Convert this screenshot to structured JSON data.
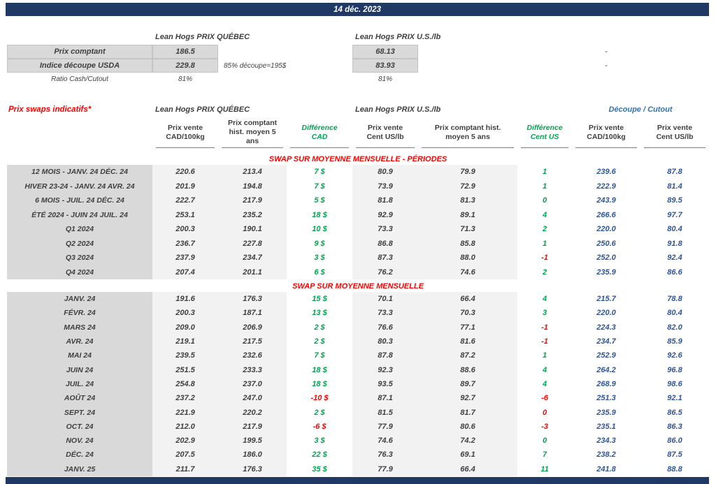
{
  "colors": {
    "navy": "#203864",
    "label_gray": "#D9D9D9",
    "shade": "#F2F2F2",
    "text": "#3F3F3F",
    "red": "#FF0000",
    "green": "#00A550",
    "blue_header": "#2E74B5",
    "blue_value": "#2F5597",
    "header_rule": "#808080"
  },
  "banner": {
    "date": "14 déc. 2023"
  },
  "top": {
    "qc_header": "Lean Hogs PRIX QUÉBEC",
    "us_header": "Lean Hogs PRIX U.S./lb",
    "rows": [
      {
        "label": "Prix comptant",
        "qc": "186.5",
        "note": "",
        "us": "68.13",
        "cutout": "-"
      },
      {
        "label": "Indice découpe USDA",
        "qc": "229.8",
        "note": "85% découpe=195$",
        "us": "83.93",
        "cutout": "-"
      },
      {
        "label": "Ratio Cash/Cutout",
        "qc": "81%",
        "note": "",
        "us": "81%",
        "cutout": ""
      }
    ]
  },
  "swaps": {
    "title": "Prix swaps indicatifs*",
    "group_headers": {
      "qc": "Lean Hogs PRIX QUÉBEC",
      "us": "Lean Hogs PRIX U.S./lb",
      "cutout": "Découpe / Cutout"
    },
    "col_headers": [
      "Prix vente\nCAD/100kg",
      "Prix comptant\nhist. moyen 5\nans",
      "Différence\nCAD",
      "Prix vente\nCent US/lb",
      "Prix comptant hist.\nmoyen 5 ans",
      "Différence\nCent US",
      "Prix vente\nCAD/100kg",
      "Prix vente\nCent US/lb"
    ],
    "sections": [
      {
        "header": "SWAP SUR MOYENNE MENSUELLE - PÉRIODES",
        "rows": [
          {
            "label": "12 MOIS -  JANV. 24 DÉC. 24",
            "vente_cad": "220.6",
            "hist_cad": "213.4",
            "diff_cad": "7 $",
            "diff_cad_color": "green",
            "vente_us": "80.9",
            "hist_us": "79.9",
            "diff_us": "1",
            "diff_us_color": "green",
            "cutout_cad": "239.6",
            "cutout_us": "87.8"
          },
          {
            "label": "HIVER 23-24 -  JANV. 24 AVR. 24",
            "vente_cad": "201.9",
            "hist_cad": "194.8",
            "diff_cad": "7 $",
            "diff_cad_color": "green",
            "vente_us": "73.9",
            "hist_us": "72.9",
            "diff_us": "1",
            "diff_us_color": "green",
            "cutout_cad": "222.9",
            "cutout_us": "81.4"
          },
          {
            "label": "6 MOIS -  JUIL. 24 DÉC. 24",
            "vente_cad": "222.7",
            "hist_cad": "217.9",
            "diff_cad": "5 $",
            "diff_cad_color": "green",
            "vente_us": "81.8",
            "hist_us": "81.3",
            "diff_us": "0",
            "diff_us_color": "green",
            "cutout_cad": "243.9",
            "cutout_us": "89.5"
          },
          {
            "label": "ÉTÉ 2024 - JUIN 24 JUIL. 24",
            "vente_cad": "253.1",
            "hist_cad": "235.2",
            "diff_cad": "18 $",
            "diff_cad_color": "green",
            "vente_us": "92.9",
            "hist_us": "89.1",
            "diff_us": "4",
            "diff_us_color": "green",
            "cutout_cad": "266.6",
            "cutout_us": "97.7"
          },
          {
            "label": "Q1 2024",
            "vente_cad": "200.3",
            "hist_cad": "190.1",
            "diff_cad": "10 $",
            "diff_cad_color": "green",
            "vente_us": "73.3",
            "hist_us": "71.3",
            "diff_us": "2",
            "diff_us_color": "green",
            "cutout_cad": "220.0",
            "cutout_us": "80.4"
          },
          {
            "label": "Q2 2024",
            "vente_cad": "236.7",
            "hist_cad": "227.8",
            "diff_cad": "9 $",
            "diff_cad_color": "green",
            "vente_us": "86.8",
            "hist_us": "85.8",
            "diff_us": "1",
            "diff_us_color": "green",
            "cutout_cad": "250.6",
            "cutout_us": "91.8"
          },
          {
            "label": "Q3 2024",
            "vente_cad": "237.9",
            "hist_cad": "234.7",
            "diff_cad": "3 $",
            "diff_cad_color": "green",
            "vente_us": "87.3",
            "hist_us": "88.0",
            "diff_us": "-1",
            "diff_us_color": "red",
            "cutout_cad": "252.0",
            "cutout_us": "92.4"
          },
          {
            "label": "Q4 2024",
            "vente_cad": "207.4",
            "hist_cad": "201.1",
            "diff_cad": "6 $",
            "diff_cad_color": "green",
            "vente_us": "76.2",
            "hist_us": "74.6",
            "diff_us": "2",
            "diff_us_color": "green",
            "cutout_cad": "235.9",
            "cutout_us": "86.6"
          }
        ]
      },
      {
        "header": "SWAP SUR MOYENNE MENSUELLE",
        "rows": [
          {
            "label": "JANV. 24",
            "vente_cad": "191.6",
            "hist_cad": "176.3",
            "diff_cad": "15 $",
            "diff_cad_color": "green",
            "vente_us": "70.1",
            "hist_us": "66.4",
            "diff_us": "4",
            "diff_us_color": "green",
            "cutout_cad": "215.7",
            "cutout_us": "78.8"
          },
          {
            "label": "FÉVR. 24",
            "vente_cad": "200.3",
            "hist_cad": "187.1",
            "diff_cad": "13 $",
            "diff_cad_color": "green",
            "vente_us": "73.3",
            "hist_us": "70.3",
            "diff_us": "3",
            "diff_us_color": "green",
            "cutout_cad": "220.0",
            "cutout_us": "80.4"
          },
          {
            "label": "MARS 24",
            "vente_cad": "209.0",
            "hist_cad": "206.9",
            "diff_cad": "2 $",
            "diff_cad_color": "green",
            "vente_us": "76.6",
            "hist_us": "77.1",
            "diff_us": "-1",
            "diff_us_color": "red",
            "cutout_cad": "224.3",
            "cutout_us": "82.0"
          },
          {
            "label": "AVR. 24",
            "vente_cad": "219.1",
            "hist_cad": "217.5",
            "diff_cad": "2 $",
            "diff_cad_color": "green",
            "vente_us": "80.3",
            "hist_us": "81.6",
            "diff_us": "-1",
            "diff_us_color": "red",
            "cutout_cad": "234.7",
            "cutout_us": "85.9"
          },
          {
            "label": "MAI 24",
            "vente_cad": "239.5",
            "hist_cad": "232.6",
            "diff_cad": "7 $",
            "diff_cad_color": "green",
            "vente_us": "87.8",
            "hist_us": "87.2",
            "diff_us": "1",
            "diff_us_color": "green",
            "cutout_cad": "252.9",
            "cutout_us": "92.6"
          },
          {
            "label": "JUIN 24",
            "vente_cad": "251.5",
            "hist_cad": "233.3",
            "diff_cad": "18 $",
            "diff_cad_color": "green",
            "vente_us": "92.3",
            "hist_us": "88.6",
            "diff_us": "4",
            "diff_us_color": "green",
            "cutout_cad": "264.2",
            "cutout_us": "96.8"
          },
          {
            "label": "JUIL. 24",
            "vente_cad": "254.8",
            "hist_cad": "237.0",
            "diff_cad": "18 $",
            "diff_cad_color": "green",
            "vente_us": "93.5",
            "hist_us": "89.7",
            "diff_us": "4",
            "diff_us_color": "green",
            "cutout_cad": "268.9",
            "cutout_us": "98.6"
          },
          {
            "label": "AOÛT 24",
            "vente_cad": "237.2",
            "hist_cad": "247.0",
            "diff_cad": "-10 $",
            "diff_cad_color": "red",
            "vente_us": "87.1",
            "hist_us": "92.7",
            "diff_us": "-6",
            "diff_us_color": "red",
            "cutout_cad": "251.3",
            "cutout_us": "92.1"
          },
          {
            "label": "SEPT. 24",
            "vente_cad": "221.9",
            "hist_cad": "220.2",
            "diff_cad": "2 $",
            "diff_cad_color": "green",
            "vente_us": "81.5",
            "hist_us": "81.7",
            "diff_us": "0",
            "diff_us_color": "red",
            "cutout_cad": "235.9",
            "cutout_us": "86.5"
          },
          {
            "label": "OCT. 24",
            "vente_cad": "212.0",
            "hist_cad": "217.9",
            "diff_cad": "-6 $",
            "diff_cad_color": "red",
            "vente_us": "77.9",
            "hist_us": "80.6",
            "diff_us": "-3",
            "diff_us_color": "red",
            "cutout_cad": "235.1",
            "cutout_us": "86.3"
          },
          {
            "label": "NOV. 24",
            "vente_cad": "202.9",
            "hist_cad": "199.5",
            "diff_cad": "3 $",
            "diff_cad_color": "green",
            "vente_us": "74.6",
            "hist_us": "74.2",
            "diff_us": "0",
            "diff_us_color": "green",
            "cutout_cad": "234.3",
            "cutout_us": "86.0"
          },
          {
            "label": "DÉC. 24",
            "vente_cad": "207.5",
            "hist_cad": "186.0",
            "diff_cad": "22 $",
            "diff_cad_color": "green",
            "vente_us": "76.3",
            "hist_us": "69.1",
            "diff_us": "7",
            "diff_us_color": "green",
            "cutout_cad": "238.2",
            "cutout_us": "87.5"
          },
          {
            "label": "JANV. 25",
            "vente_cad": "211.7",
            "hist_cad": "176.3",
            "diff_cad": "35 $",
            "diff_cad_color": "green",
            "vente_us": "77.9",
            "hist_us": "66.4",
            "diff_us": "11",
            "diff_us_color": "green",
            "cutout_cad": "241.8",
            "cutout_us": "88.8"
          }
        ]
      }
    ]
  }
}
